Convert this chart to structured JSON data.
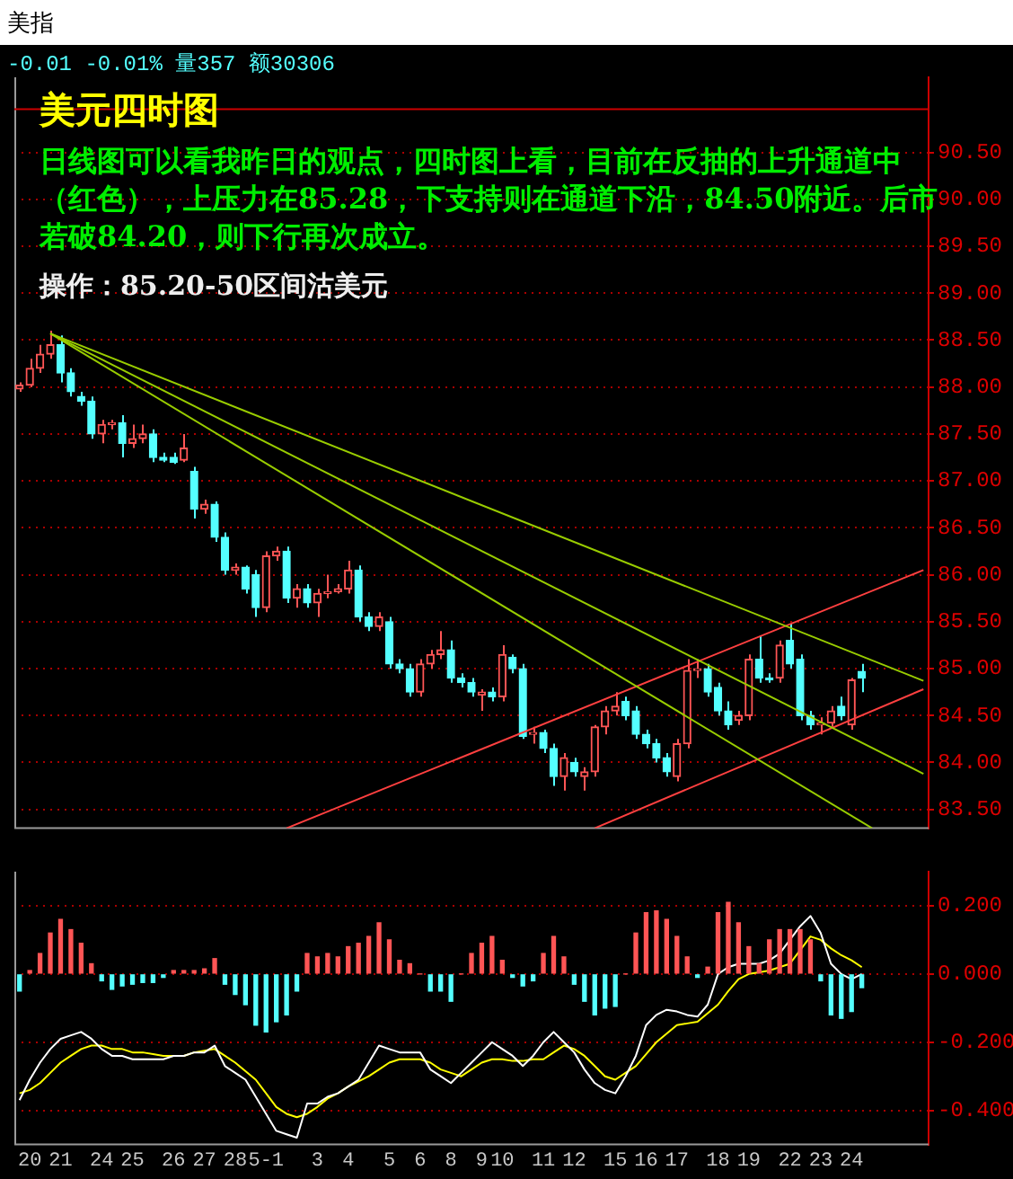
{
  "chart_data": [
    {
      "type": "candlestick",
      "title": "美元四时图",
      "annotations": [
        "美指",
        "-0.01 -0.01% 量357 额30306",
        "日线图可以看我昨日的观点，四时图上看，目前在反抽的上升通道中（红色），上压力在85.28，下支持则在通道下沿，84.50附近。后市若破84.20，则下行再次成立。",
        "操作：85.20-50区间沽美元"
      ],
      "categories": [
        null,
        null,
        null,
        null,
        null,
        null,
        null,
        null,
        null,
        null,
        null,
        null,
        null,
        null,
        null,
        null,
        null,
        null,
        null,
        null,
        null,
        null,
        null,
        null,
        null,
        null,
        null,
        null,
        null,
        null,
        null,
        null,
        null,
        null,
        null,
        null,
        null,
        null,
        null,
        null,
        null,
        null,
        null,
        null,
        null,
        null,
        null,
        null,
        null,
        null,
        null,
        null,
        null,
        null,
        null,
        null,
        null,
        null,
        null,
        null,
        null,
        null,
        null,
        null,
        null,
        null,
        null,
        null,
        null,
        null,
        null,
        null,
        null,
        null,
        null,
        null,
        null,
        null,
        null,
        null,
        null,
        null,
        null,
        null,
        null,
        null,
        null,
        null,
        null
      ],
      "ohlc": [
        [
          87.98,
          88.05,
          87.95,
          88.02
        ],
        [
          88.02,
          88.3,
          88.0,
          88.2
        ],
        [
          88.2,
          88.45,
          88.15,
          88.35
        ],
        [
          88.35,
          88.6,
          88.3,
          88.45
        ],
        [
          88.45,
          88.55,
          88.05,
          88.15
        ],
        [
          88.15,
          88.2,
          87.9,
          87.95
        ],
        [
          87.9,
          87.95,
          87.8,
          87.85
        ],
        [
          87.85,
          87.9,
          87.45,
          87.5
        ],
        [
          87.5,
          87.65,
          87.4,
          87.6
        ],
        [
          87.6,
          87.65,
          87.55,
          87.62
        ],
        [
          87.62,
          87.7,
          87.25,
          87.4
        ],
        [
          87.4,
          87.6,
          87.35,
          87.45
        ],
        [
          87.45,
          87.6,
          87.4,
          87.5
        ],
        [
          87.5,
          87.55,
          87.2,
          87.25
        ],
        [
          87.25,
          87.3,
          87.2,
          87.22
        ],
        [
          87.25,
          87.3,
          87.18,
          87.2
        ],
        [
          87.22,
          87.5,
          87.2,
          87.35
        ],
        [
          87.1,
          87.15,
          86.6,
          86.7
        ],
        [
          86.7,
          86.8,
          86.65,
          86.75
        ],
        [
          86.75,
          86.78,
          86.35,
          86.4
        ],
        [
          86.4,
          86.45,
          86.0,
          86.05
        ],
        [
          86.05,
          86.12,
          86.0,
          86.08
        ],
        [
          86.08,
          86.1,
          85.8,
          85.85
        ],
        [
          86.0,
          86.05,
          85.55,
          85.65
        ],
        [
          85.65,
          86.25,
          85.6,
          86.2
        ],
        [
          86.2,
          86.3,
          86.15,
          86.25
        ],
        [
          86.25,
          86.3,
          85.7,
          85.75
        ],
        [
          85.75,
          85.9,
          85.65,
          85.85
        ],
        [
          85.85,
          85.9,
          85.65,
          85.7
        ],
        [
          85.7,
          85.85,
          85.55,
          85.8
        ],
        [
          85.8,
          86.0,
          85.75,
          85.82
        ],
        [
          85.82,
          85.9,
          85.8,
          85.85
        ],
        [
          85.85,
          86.15,
          85.8,
          86.05
        ],
        [
          86.05,
          86.1,
          85.5,
          85.55
        ],
        [
          85.55,
          85.6,
          85.4,
          85.45
        ],
        [
          85.45,
          85.6,
          85.4,
          85.55
        ],
        [
          85.5,
          85.55,
          85.0,
          85.05
        ],
        [
          85.05,
          85.1,
          84.95,
          85.0
        ],
        [
          85.0,
          85.05,
          84.7,
          84.75
        ],
        [
          84.75,
          85.1,
          84.7,
          85.05
        ],
        [
          85.05,
          85.2,
          85.0,
          85.15
        ],
        [
          85.15,
          85.4,
          85.1,
          85.2
        ],
        [
          85.2,
          85.3,
          84.85,
          84.9
        ],
        [
          84.9,
          84.95,
          84.8,
          84.85
        ],
        [
          84.85,
          84.9,
          84.7,
          84.75
        ],
        [
          84.72,
          84.78,
          84.55,
          84.75
        ],
        [
          84.75,
          84.8,
          84.65,
          84.7
        ],
        [
          84.7,
          85.25,
          84.65,
          85.15
        ],
        [
          85.12,
          85.15,
          84.95,
          85.0
        ],
        [
          85.0,
          85.05,
          84.25,
          84.28
        ],
        [
          84.3,
          84.38,
          84.2,
          84.32
        ],
        [
          84.32,
          84.35,
          84.1,
          84.15
        ],
        [
          84.15,
          84.2,
          83.75,
          83.85
        ],
        [
          83.85,
          84.1,
          83.7,
          84.05
        ],
        [
          84.0,
          84.05,
          83.85,
          83.9
        ],
        [
          83.85,
          83.95,
          83.7,
          83.9
        ],
        [
          83.9,
          84.4,
          83.85,
          84.38
        ],
        [
          84.38,
          84.6,
          84.3,
          84.55
        ],
        [
          84.55,
          84.75,
          84.5,
          84.6
        ],
        [
          84.65,
          84.7,
          84.45,
          84.5
        ],
        [
          84.55,
          84.6,
          84.25,
          84.3
        ],
        [
          84.3,
          84.35,
          84.15,
          84.2
        ],
        [
          84.2,
          84.25,
          84.0,
          84.05
        ],
        [
          84.05,
          84.1,
          83.85,
          83.9
        ],
        [
          83.85,
          84.25,
          83.8,
          84.2
        ],
        [
          84.2,
          85.1,
          84.15,
          84.98
        ],
        [
          84.98,
          85.1,
          84.9,
          85.0
        ],
        [
          85.0,
          85.05,
          84.7,
          84.75
        ],
        [
          84.8,
          84.85,
          84.5,
          84.55
        ],
        [
          84.55,
          84.65,
          84.35,
          84.4
        ],
        [
          84.45,
          84.55,
          84.4,
          84.5
        ],
        [
          84.5,
          85.15,
          84.45,
          85.1
        ],
        [
          85.1,
          85.35,
          84.85,
          84.9
        ],
        [
          84.9,
          84.95,
          84.85,
          84.88
        ],
        [
          84.9,
          85.3,
          84.85,
          85.25
        ],
        [
          85.3,
          85.48,
          85.0,
          85.05
        ],
        [
          85.1,
          85.15,
          84.45,
          84.5
        ],
        [
          84.5,
          84.55,
          84.35,
          84.4
        ],
        [
          84.4,
          84.48,
          84.3,
          84.42
        ],
        [
          84.42,
          84.6,
          84.38,
          84.55
        ],
        [
          84.6,
          84.7,
          84.45,
          84.5
        ],
        [
          84.4,
          84.9,
          84.35,
          84.88
        ],
        [
          84.97,
          85.05,
          84.75,
          84.9
        ],
        null,
        null,
        null,
        null,
        null,
        null
      ],
      "colors": [
        "#ff5555",
        "#ff5555",
        "#ff5555",
        "#ff5555",
        "#54ffff",
        "#54ffff",
        "#54ffff",
        "#54ffff",
        "#ff5555",
        "#ff5555",
        "#54ffff",
        "#ff5555",
        "#ff5555",
        "#54ffff",
        "#54ffff",
        "#54ffff",
        "#ff5555",
        "#54ffff",
        "#ff5555",
        "#54ffff",
        "#54ffff",
        "#ff5555",
        "#54ffff",
        "#54ffff",
        "#ff5555",
        "#ff5555",
        "#54ffff",
        "#ff5555",
        "#54ffff",
        "#ff5555",
        "#ff5555",
        "#ff5555",
        "#ff5555",
        "#54ffff",
        "#54ffff",
        "#ff5555",
        "#54ffff",
        "#54ffff",
        "#54ffff",
        "#ff5555",
        "#ff5555",
        "#ff5555",
        "#54ffff",
        "#54ffff",
        "#54ffff",
        "#ff5555",
        "#54ffff",
        "#ff5555",
        "#54ffff",
        "#54ffff",
        "#ff5555",
        "#54ffff",
        "#54ffff",
        "#ff5555",
        "#54ffff",
        "#ff5555",
        "#ff5555",
        "#ff5555",
        "#ff5555",
        "#54ffff",
        "#54ffff",
        "#54ffff",
        "#54ffff",
        "#54ffff",
        "#ff5555",
        "#ff5555",
        "#ff5555",
        "#54ffff",
        "#54ffff",
        "#54ffff",
        "#ff5555",
        "#ff5555",
        "#54ffff",
        "#54ffff",
        "#ff5555",
        "#54ffff",
        "#54ffff",
        "#54ffff",
        "#ff5555",
        "#ff5555",
        "#54ffff",
        "#ff5555",
        "#54ffff",
        null,
        null,
        null,
        null,
        null,
        null
      ],
      "series": [
        {
          "type": "line",
          "values": [
            null,
            null,
            null,
            88.57,
            null,
            null,
            null,
            null,
            null,
            null,
            null,
            null,
            null,
            null,
            null,
            null,
            null,
            null,
            null,
            null,
            null,
            null,
            null,
            null,
            null,
            null,
            null,
            null,
            null,
            null,
            null,
            null,
            null,
            null,
            null,
            null,
            null,
            null,
            null,
            null,
            null,
            null,
            null,
            null,
            null,
            null,
            null,
            null,
            null,
            null,
            null,
            null,
            null,
            null,
            null,
            null,
            null,
            null,
            null,
            null,
            null,
            null,
            null,
            null,
            null,
            null,
            null,
            null,
            null,
            null,
            null,
            null,
            null,
            null,
            null,
            null,
            null,
            null,
            null,
            null,
            null,
            null,
            null,
            null,
            null,
            null,
            null,
            null,
            84.87
          ],
          "color": "#99cc00"
        },
        {
          "type": "line",
          "values": [
            null,
            null,
            null,
            88.57,
            null,
            null,
            null,
            null,
            null,
            null,
            null,
            null,
            null,
            null,
            null,
            null,
            null,
            null,
            null,
            null,
            null,
            null,
            null,
            null,
            null,
            null,
            null,
            null,
            null,
            null,
            null,
            null,
            null,
            null,
            null,
            null,
            null,
            null,
            null,
            null,
            null,
            null,
            null,
            null,
            null,
            null,
            null,
            null,
            null,
            null,
            null,
            null,
            null,
            null,
            null,
            null,
            null,
            null,
            null,
            null,
            null,
            null,
            null,
            null,
            null,
            null,
            null,
            null,
            null,
            null,
            null,
            null,
            null,
            null,
            null,
            null,
            null,
            null,
            null,
            null,
            null,
            null,
            null,
            null,
            null,
            null,
            null,
            null,
            83.88
          ],
          "color": "#99cc00"
        },
        {
          "type": "line",
          "values": [
            null,
            null,
            null,
            88.57,
            null,
            null,
            null,
            null,
            null,
            null,
            null,
            null,
            null,
            null,
            null,
            null,
            null,
            null,
            null,
            null,
            null,
            null,
            null,
            null,
            null,
            null,
            null,
            null,
            null,
            null,
            null,
            null,
            null,
            null,
            null,
            null,
            null,
            null,
            null,
            null,
            null,
            null,
            null,
            null,
            null,
            null,
            null,
            null,
            null,
            null,
            null,
            null,
            null,
            null,
            null,
            null,
            null,
            null,
            null,
            null,
            null,
            null,
            null,
            null,
            null,
            null,
            null,
            null,
            null,
            null,
            null,
            null,
            null,
            null,
            null,
            null,
            null,
            null,
            null,
            null,
            null,
            null,
            null,
            83.3,
            null,
            null,
            null,
            null,
            null
          ],
          "color": "#99cc00"
        },
        {
          "type": "line",
          "values": [
            null,
            null,
            null,
            null,
            null,
            null,
            null,
            null,
            null,
            null,
            null,
            null,
            null,
            null,
            null,
            null,
            null,
            null,
            null,
            null,
            null,
            null,
            null,
            null,
            null,
            null,
            83.3,
            null,
            null,
            null,
            null,
            null,
            null,
            null,
            null,
            null,
            null,
            null,
            null,
            null,
            null,
            null,
            null,
            null,
            null,
            null,
            null,
            null,
            null,
            null,
            null,
            null,
            null,
            null,
            null,
            null,
            null,
            null,
            null,
            null,
            null,
            null,
            null,
            null,
            null,
            null,
            null,
            null,
            null,
            null,
            null,
            null,
            null,
            null,
            null,
            null,
            null,
            null,
            null,
            null,
            null,
            null,
            null,
            null,
            null,
            null,
            null,
            null,
            86.05
          ],
          "color": "#ff4040"
        },
        {
          "type": "line",
          "values": [
            null,
            null,
            null,
            null,
            null,
            null,
            null,
            null,
            null,
            null,
            null,
            null,
            null,
            null,
            null,
            null,
            null,
            null,
            null,
            null,
            null,
            null,
            null,
            null,
            null,
            null,
            null,
            null,
            null,
            null,
            null,
            null,
            null,
            null,
            null,
            null,
            null,
            null,
            null,
            null,
            null,
            null,
            null,
            null,
            null,
            null,
            null,
            null,
            null,
            null,
            null,
            null,
            null,
            null,
            null,
            null,
            83.3,
            null,
            null,
            null,
            null,
            null,
            null,
            null,
            null,
            null,
            null,
            null,
            null,
            null,
            null,
            null,
            null,
            null,
            null,
            null,
            null,
            null,
            null,
            null,
            null,
            null,
            null,
            null,
            null,
            null,
            null,
            null,
            84.78
          ],
          "color": "#ff4040"
        }
      ],
      "ylim": [
        83.3,
        91.3
      ],
      "yticks": [
        {
          "value": 83.5,
          "label": "83.50"
        },
        {
          "value": 84,
          "label": "84.00"
        },
        {
          "value": 84.5,
          "label": "84.50"
        },
        {
          "value": 85,
          "label": "85.00"
        },
        {
          "value": 85.5,
          "label": "85.50"
        },
        {
          "value": 86,
          "label": "86.00"
        },
        {
          "value": 86.5,
          "label": "86.50"
        },
        {
          "value": 87,
          "label": "87.00"
        },
        {
          "value": 87.5,
          "label": "87.50"
        },
        {
          "value": 88,
          "label": "88.00"
        },
        {
          "value": 88.5,
          "label": "88.50"
        },
        {
          "value": 89,
          "label": "89.00"
        },
        {
          "value": 89.5,
          "label": "89.50"
        },
        {
          "value": 90,
          "label": "90.00"
        },
        {
          "value": 90.5,
          "label": "90.50"
        }
      ],
      "ref_lines": [
        {
          "axis": "y",
          "value": 90.96,
          "color": "#cc0000"
        }
      ],
      "grid": "y",
      "tick_labels": "y"
    },
    {
      "type": "bar",
      "categories": [
        null,
        "20",
        null,
        null,
        "21",
        null,
        null,
        null,
        "24",
        null,
        null,
        "25",
        null,
        null,
        null,
        "26",
        null,
        null,
        "27",
        null,
        null,
        "28",
        null,
        null,
        "5-1",
        null,
        null,
        null,
        null,
        "3",
        null,
        null,
        "4",
        null,
        null,
        null,
        "5",
        null,
        null,
        "6",
        null,
        null,
        "8",
        null,
        null,
        "9",
        null,
        "10",
        null,
        null,
        null,
        "11",
        null,
        null,
        "12",
        null,
        null,
        null,
        "15",
        null,
        null,
        "16",
        null,
        null,
        "17",
        null,
        null,
        null,
        "18",
        null,
        null,
        "19",
        null,
        null,
        null,
        "22",
        null,
        null,
        "23",
        null,
        null,
        "24",
        null,
        null,
        null,
        null,
        null,
        null,
        null
      ],
      "series": [
        {
          "type": "bar",
          "values": [
            -0.05,
            0.01,
            0.06,
            0.12,
            0.16,
            0.13,
            0.09,
            0.03,
            -0.02,
            -0.045,
            -0.035,
            -0.03,
            -0.025,
            -0.025,
            -0.01,
            0.01,
            0.01,
            0.01,
            0.015,
            0.045,
            -0.03,
            -0.06,
            -0.09,
            -0.15,
            -0.17,
            -0.14,
            -0.12,
            -0.05,
            0.06,
            0.05,
            0.06,
            0.05,
            0.08,
            0.09,
            0.11,
            0.15,
            0.1,
            0.04,
            0.03,
            0.0,
            -0.05,
            -0.05,
            -0.08,
            0.0,
            0.06,
            0.09,
            0.11,
            0.04,
            -0.01,
            -0.035,
            -0.02,
            0.06,
            0.11,
            0.05,
            -0.03,
            -0.08,
            -0.12,
            -0.1,
            -0.095,
            0.0,
            0.12,
            0.18,
            0.185,
            0.16,
            0.11,
            0.05,
            -0.01,
            0.02,
            0.18,
            0.21,
            0.15,
            0.08,
            0.03,
            0.1,
            0.13,
            0.13,
            0.13,
            0.1,
            -0.02,
            -0.12,
            -0.13,
            -0.11,
            -0.04,
            null,
            null,
            null,
            null,
            null,
            null
          ],
          "colors": [
            "#54ffff",
            "#ff5555",
            "#ff5555",
            "#ff5555",
            "#ff5555",
            "#ff5555",
            "#ff5555",
            "#ff5555",
            "#54ffff",
            "#54ffff",
            "#54ffff",
            "#54ffff",
            "#54ffff",
            "#54ffff",
            "#54ffff",
            "#ff5555",
            "#ff5555",
            "#ff5555",
            "#ff5555",
            "#ff5555",
            "#54ffff",
            "#54ffff",
            "#54ffff",
            "#54ffff",
            "#54ffff",
            "#54ffff",
            "#54ffff",
            "#54ffff",
            "#ff5555",
            "#ff5555",
            "#ff5555",
            "#ff5555",
            "#ff5555",
            "#ff5555",
            "#ff5555",
            "#ff5555",
            "#ff5555",
            "#ff5555",
            "#ff5555",
            "#ff5555",
            "#54ffff",
            "#54ffff",
            "#54ffff",
            "#ff5555",
            "#ff5555",
            "#ff5555",
            "#ff5555",
            "#ff5555",
            "#54ffff",
            "#54ffff",
            "#54ffff",
            "#ff5555",
            "#ff5555",
            "#ff5555",
            "#54ffff",
            "#54ffff",
            "#54ffff",
            "#54ffff",
            "#54ffff",
            "#ff5555",
            "#ff5555",
            "#ff5555",
            "#ff5555",
            "#ff5555",
            "#ff5555",
            "#ff5555",
            "#54ffff",
            "#ff5555",
            "#ff5555",
            "#ff5555",
            "#ff5555",
            "#ff5555",
            "#ff5555",
            "#ff5555",
            "#ff5555",
            "#ff5555",
            "#ff5555",
            "#ff5555",
            "#54ffff",
            "#54ffff",
            "#54ffff",
            "#54ffff",
            "#54ffff",
            null,
            null,
            null,
            null,
            null,
            null
          ]
        },
        {
          "type": "line",
          "color": "#ffffff",
          "values": [
            -0.37,
            -0.31,
            -0.26,
            -0.22,
            -0.19,
            -0.18,
            -0.17,
            -0.19,
            -0.22,
            -0.24,
            -0.24,
            -0.25,
            -0.25,
            -0.25,
            -0.25,
            -0.24,
            -0.24,
            -0.23,
            -0.23,
            -0.21,
            -0.27,
            -0.29,
            -0.31,
            -0.36,
            -0.41,
            -0.46,
            -0.47,
            -0.48,
            -0.38,
            -0.38,
            -0.36,
            -0.35,
            -0.33,
            -0.31,
            -0.26,
            -0.21,
            -0.22,
            -0.23,
            -0.23,
            -0.23,
            -0.28,
            -0.3,
            -0.32,
            -0.29,
            -0.26,
            -0.23,
            -0.2,
            -0.22,
            -0.24,
            -0.27,
            -0.24,
            -0.2,
            -0.17,
            -0.2,
            -0.23,
            -0.28,
            -0.32,
            -0.34,
            -0.35,
            -0.3,
            -0.24,
            -0.15,
            -0.12,
            -0.105,
            -0.11,
            -0.12,
            -0.125,
            -0.09,
            0.0,
            0.02,
            0.03,
            0.03,
            0.03,
            0.04,
            0.06,
            0.1,
            0.14,
            0.17,
            0.12,
            0.03,
            0.0,
            -0.015,
            0.0,
            null,
            null,
            null,
            null,
            null,
            null
          ]
        },
        {
          "type": "line",
          "color": "#ffff00",
          "values": [
            -0.35,
            -0.34,
            -0.32,
            -0.29,
            -0.26,
            -0.24,
            -0.22,
            -0.21,
            -0.21,
            -0.22,
            -0.22,
            -0.23,
            -0.23,
            -0.235,
            -0.24,
            -0.24,
            -0.24,
            -0.23,
            -0.225,
            -0.22,
            -0.24,
            -0.26,
            -0.285,
            -0.31,
            -0.35,
            -0.39,
            -0.41,
            -0.42,
            -0.41,
            -0.39,
            -0.365,
            -0.35,
            -0.33,
            -0.315,
            -0.3,
            -0.28,
            -0.26,
            -0.25,
            -0.25,
            -0.25,
            -0.26,
            -0.28,
            -0.29,
            -0.3,
            -0.28,
            -0.26,
            -0.25,
            -0.25,
            -0.255,
            -0.255,
            -0.25,
            -0.25,
            -0.23,
            -0.21,
            -0.22,
            -0.24,
            -0.27,
            -0.3,
            -0.31,
            -0.29,
            -0.27,
            -0.235,
            -0.2,
            -0.175,
            -0.15,
            -0.145,
            -0.14,
            -0.115,
            -0.09,
            -0.05,
            -0.015,
            0.0,
            0.005,
            0.01,
            0.02,
            0.03,
            0.07,
            0.11,
            0.1,
            0.075,
            0.055,
            0.04,
            0.02,
            null,
            null,
            null,
            null,
            null,
            null
          ]
        }
      ],
      "ylim": [
        -0.5,
        0.3
      ],
      "yticks": [
        {
          "value": -0.4,
          "label": "-0.400"
        },
        {
          "value": -0.2,
          "label": "-0.200"
        },
        {
          "value": 0,
          "label": "0.000"
        },
        {
          "value": 0.2,
          "label": "0.200"
        }
      ],
      "grid": "y"
    }
  ]
}
